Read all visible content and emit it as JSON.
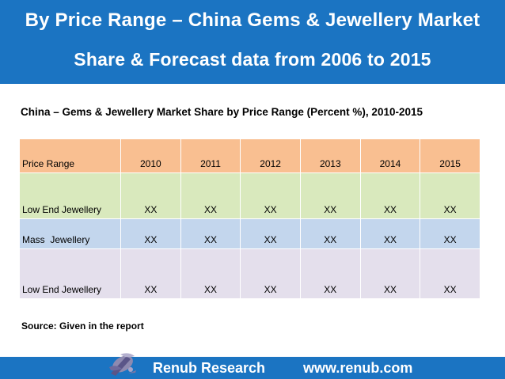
{
  "header": {
    "title_line1": "By Price Range – China Gems & Jewellery Market",
    "title_line2": "Share & Forecast data from 2006 to 2015"
  },
  "table": {
    "caption": "China – Gems & Jewellery Market Share by Price Range (Percent %), 2010-2015",
    "columns": [
      "Price Range",
      "2010",
      "2011",
      "2012",
      "2013",
      "2014",
      "2015"
    ],
    "rows": [
      {
        "label": "Low End Jewellery",
        "values": [
          "XX",
          "XX",
          "XX",
          "XX",
          "XX",
          "XX"
        ]
      },
      {
        "label": "Mass  Jewellery",
        "values": [
          "XX",
          "XX",
          "XX",
          "XX",
          "XX",
          "XX"
        ]
      },
      {
        "label": "Low End Jewellery",
        "values": [
          "XX",
          "XX",
          "XX",
          "XX",
          "XX",
          "XX"
        ]
      }
    ]
  },
  "source": "Source: Given in the report",
  "footer": {
    "company": "Renub Research",
    "url": "www.renub.com"
  },
  "colors": {
    "brand_blue": "#1b74c2",
    "header_row": "#f9bf91",
    "row_green": "#d9e9bd",
    "row_blue": "#c3d6ed",
    "row_lavender": "#e4dfec"
  },
  "icons": {
    "logo": "renub-logo-icon"
  }
}
